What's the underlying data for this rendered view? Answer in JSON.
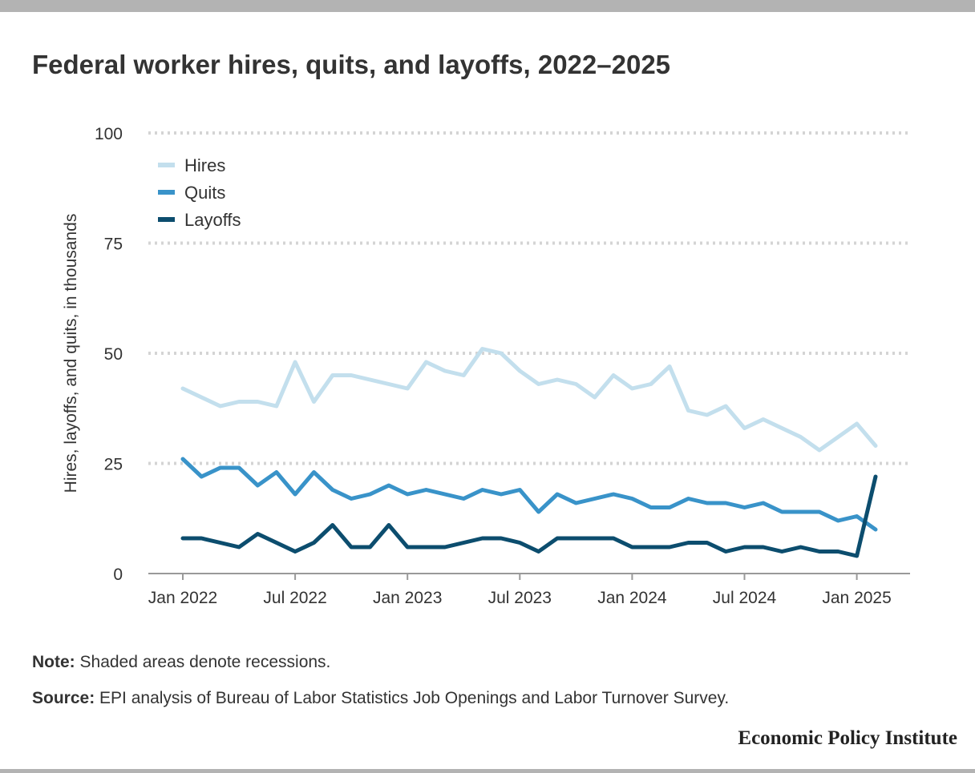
{
  "title": "Federal worker hires, quits, and layoffs, 2022–2025",
  "notes": {
    "note_label": "Note:",
    "note_text": "Shaded areas denote recessions.",
    "source_label": "Source:",
    "source_text": "EPI analysis of Bureau of Labor Statistics Job Openings and Labor Turnover Survey."
  },
  "brand": "Economic Policy Institute",
  "chart_data": {
    "type": "line",
    "ylabel": "Hires, layoffs, and quits, in thousands",
    "ylim": [
      0,
      100
    ],
    "yticks": [
      0,
      25,
      50,
      75,
      100
    ],
    "grid": true,
    "legend_position": "top-left",
    "x_ticks": [
      "Jan 2022",
      "Jul 2022",
      "Jan 2023",
      "Jul 2023",
      "Jan 2024",
      "Jul 2024",
      "Jan 2025"
    ],
    "x": [
      "Jan 2022",
      "Feb 2022",
      "Mar 2022",
      "Apr 2022",
      "May 2022",
      "Jun 2022",
      "Jul 2022",
      "Aug 2022",
      "Sep 2022",
      "Oct 2022",
      "Nov 2022",
      "Dec 2022",
      "Jan 2023",
      "Feb 2023",
      "Mar 2023",
      "Apr 2023",
      "May 2023",
      "Jun 2023",
      "Jul 2023",
      "Aug 2023",
      "Sep 2023",
      "Oct 2023",
      "Nov 2023",
      "Dec 2023",
      "Jan 2024",
      "Feb 2024",
      "Mar 2024",
      "Apr 2024",
      "May 2024",
      "Jun 2024",
      "Jul 2024",
      "Aug 2024",
      "Sep 2024",
      "Oct 2024",
      "Nov 2024",
      "Dec 2024",
      "Jan 2025",
      "Feb 2025"
    ],
    "series": [
      {
        "name": "Hires",
        "color": "#c3dfed",
        "values": [
          42,
          40,
          38,
          39,
          39,
          38,
          48,
          39,
          45,
          45,
          44,
          43,
          42,
          48,
          46,
          45,
          51,
          50,
          46,
          43,
          44,
          43,
          40,
          45,
          42,
          43,
          47,
          37,
          36,
          38,
          33,
          35,
          33,
          31,
          28,
          31,
          34,
          29
        ]
      },
      {
        "name": "Quits",
        "color": "#3993c9",
        "values": [
          26,
          22,
          24,
          24,
          20,
          23,
          18,
          23,
          19,
          17,
          18,
          20,
          18,
          19,
          18,
          17,
          19,
          18,
          19,
          14,
          18,
          16,
          17,
          18,
          17,
          15,
          15,
          17,
          16,
          16,
          15,
          16,
          14,
          14,
          14,
          12,
          13,
          10
        ]
      },
      {
        "name": "Layoffs",
        "color": "#0c4d6e",
        "values": [
          8,
          8,
          7,
          6,
          9,
          7,
          5,
          7,
          11,
          6,
          6,
          11,
          6,
          6,
          6,
          7,
          8,
          8,
          7,
          5,
          8,
          8,
          8,
          8,
          6,
          6,
          6,
          7,
          7,
          5,
          6,
          6,
          5,
          6,
          5,
          5,
          4,
          22
        ]
      }
    ]
  }
}
